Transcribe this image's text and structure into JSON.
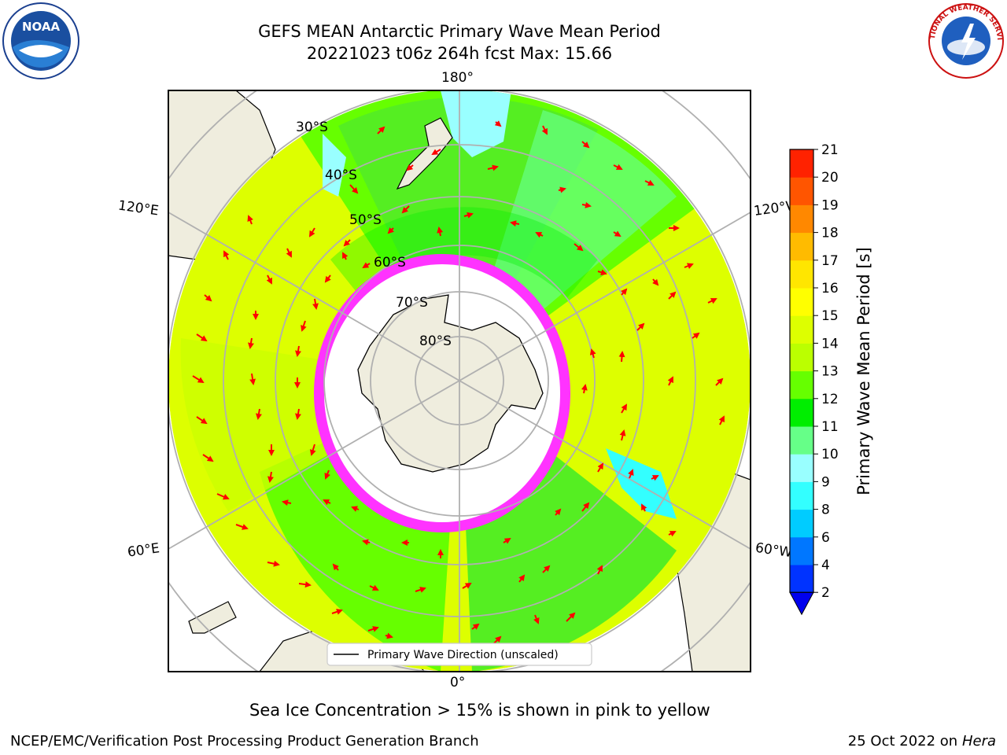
{
  "header": {
    "title_line1": "GEFS MEAN Antarctic Primary Wave Mean Period",
    "title_line2": "20221023 t06z 264h fcst   Max: 15.66"
  },
  "logos": {
    "left": "NOAA",
    "right": "NATIONAL WEATHER SERVICE"
  },
  "map": {
    "lon_labels": {
      "top": "180°",
      "bottom": "0°",
      "upper_left": "120°E",
      "upper_right": "120°W",
      "lower_left": "60°E",
      "lower_right": "60°W"
    },
    "lat_labels": [
      "30°S",
      "40°S",
      "50°S",
      "60°S",
      "70°S",
      "80°S"
    ],
    "legend_label": "Primary Wave Direction (unscaled)"
  },
  "colorbar": {
    "label": "Primary Wave Mean Period [s]",
    "ticks": [
      "2",
      "4",
      "6",
      "8",
      "9",
      "10",
      "11",
      "12",
      "13",
      "14",
      "15",
      "16",
      "17",
      "18",
      "19",
      "20",
      "21"
    ],
    "colors": [
      "#0033ff",
      "#0077ff",
      "#00ccff",
      "#33ffff",
      "#99ffff",
      "#66ff88",
      "#00ee00",
      "#66ff00",
      "#bbff00",
      "#ddff00",
      "#ffff00",
      "#ffe600",
      "#ffbb00",
      "#ff8800",
      "#ff5500",
      "#ff2200"
    ],
    "under_color": "#0000ee"
  },
  "note": "Sea Ice Concentration > 15% is shown in pink to yellow",
  "footer": {
    "left": "NCEP/EMC/Verification Post Processing Product Generation Branch",
    "date": "25 Oct 2022 on ",
    "machine": "Hera"
  }
}
